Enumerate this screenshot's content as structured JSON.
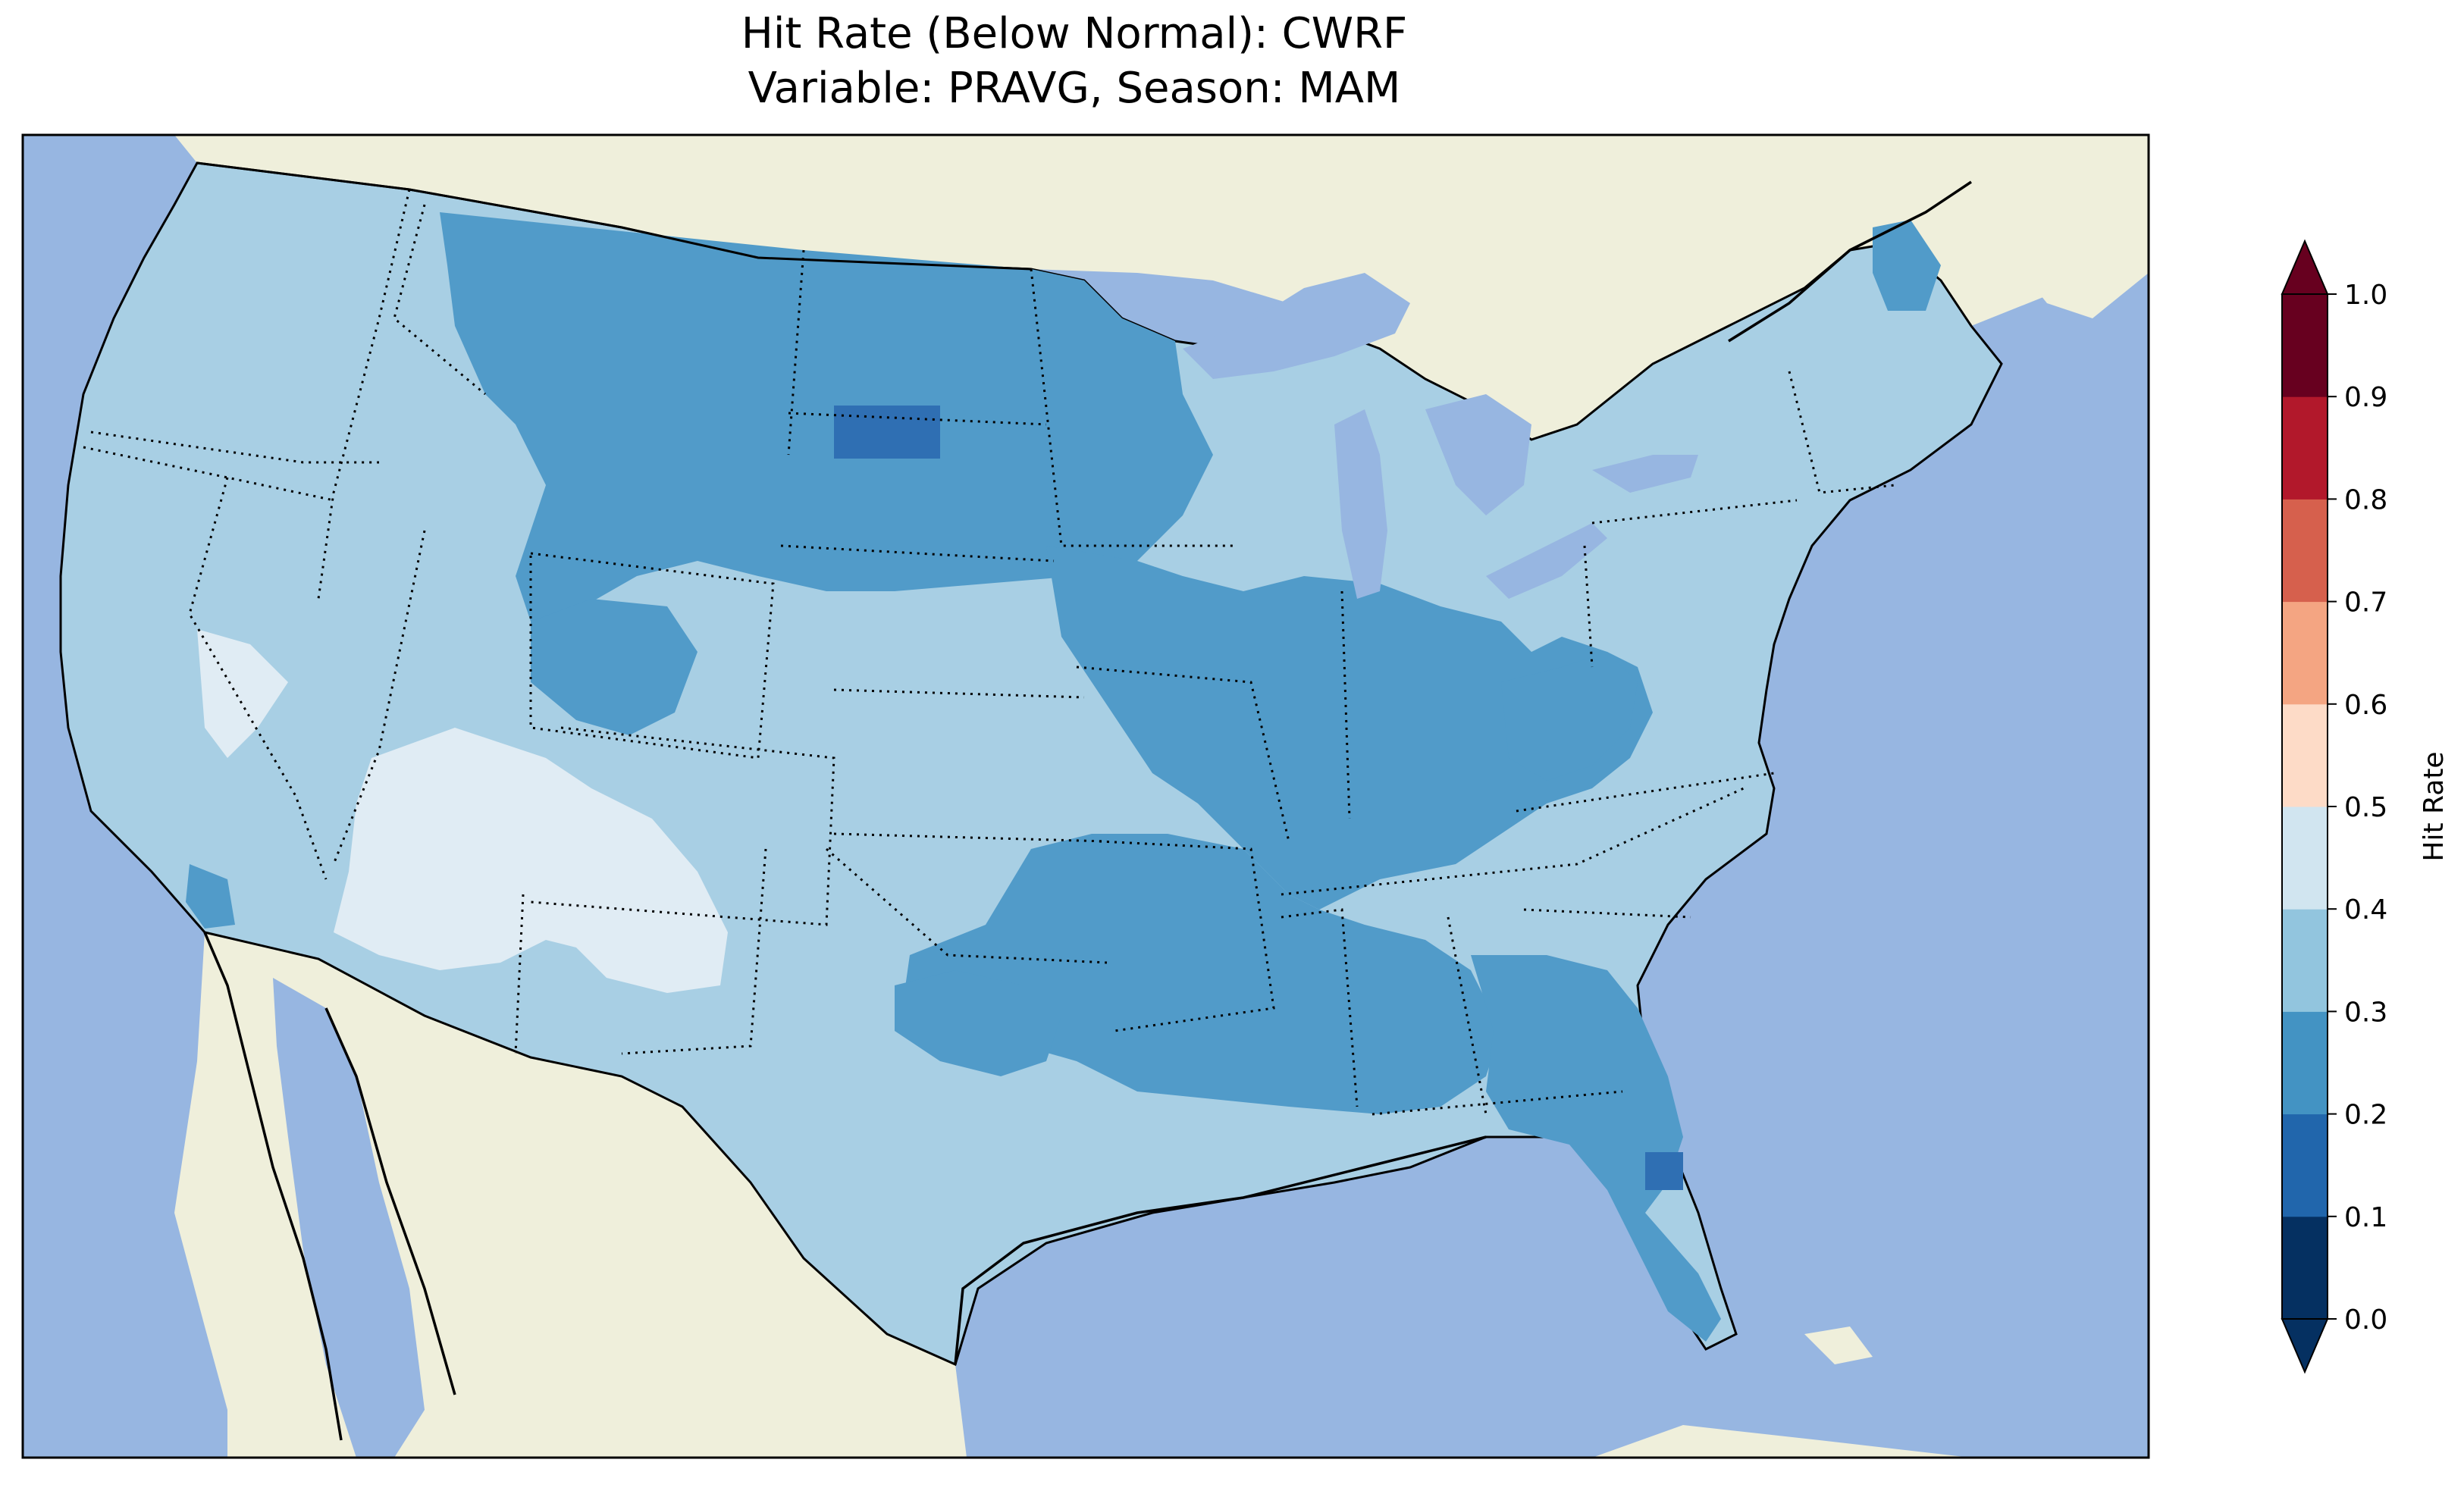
{
  "title_line1": "Hit Rate (Below Normal): CWRF",
  "title_line2": "Variable: PRAVG, Season: MAM",
  "colorbar": {
    "label": "Hit Rate",
    "ticks": [
      "0.0",
      "0.1",
      "0.2",
      "0.3",
      "0.4",
      "0.5",
      "0.6",
      "0.7",
      "0.8",
      "0.9",
      "1.0"
    ],
    "level_colors": [
      "#053061",
      "#2166ac",
      "#4393c3",
      "#92c5de",
      "#d1e5f0",
      "#fddbc7",
      "#f4a582",
      "#d6604d",
      "#b2182b",
      "#67001f"
    ],
    "extend": "both"
  },
  "map_colors": {
    "ocean": "#97b6e1",
    "land": "#efefdb",
    "dominant_class_0.3_0.4": "#a8cfe4",
    "class_0.2_0.3": "#519bc9",
    "class_0.1_0.2": "#2f6fb3",
    "class_0.4_0.5": "#e0ecf4"
  },
  "map": {
    "region": "Contiguous United States",
    "projection": "Lambert Conformal",
    "features": [
      "coastline",
      "country borders",
      "state borders (dotted)",
      "lakes"
    ]
  }
}
